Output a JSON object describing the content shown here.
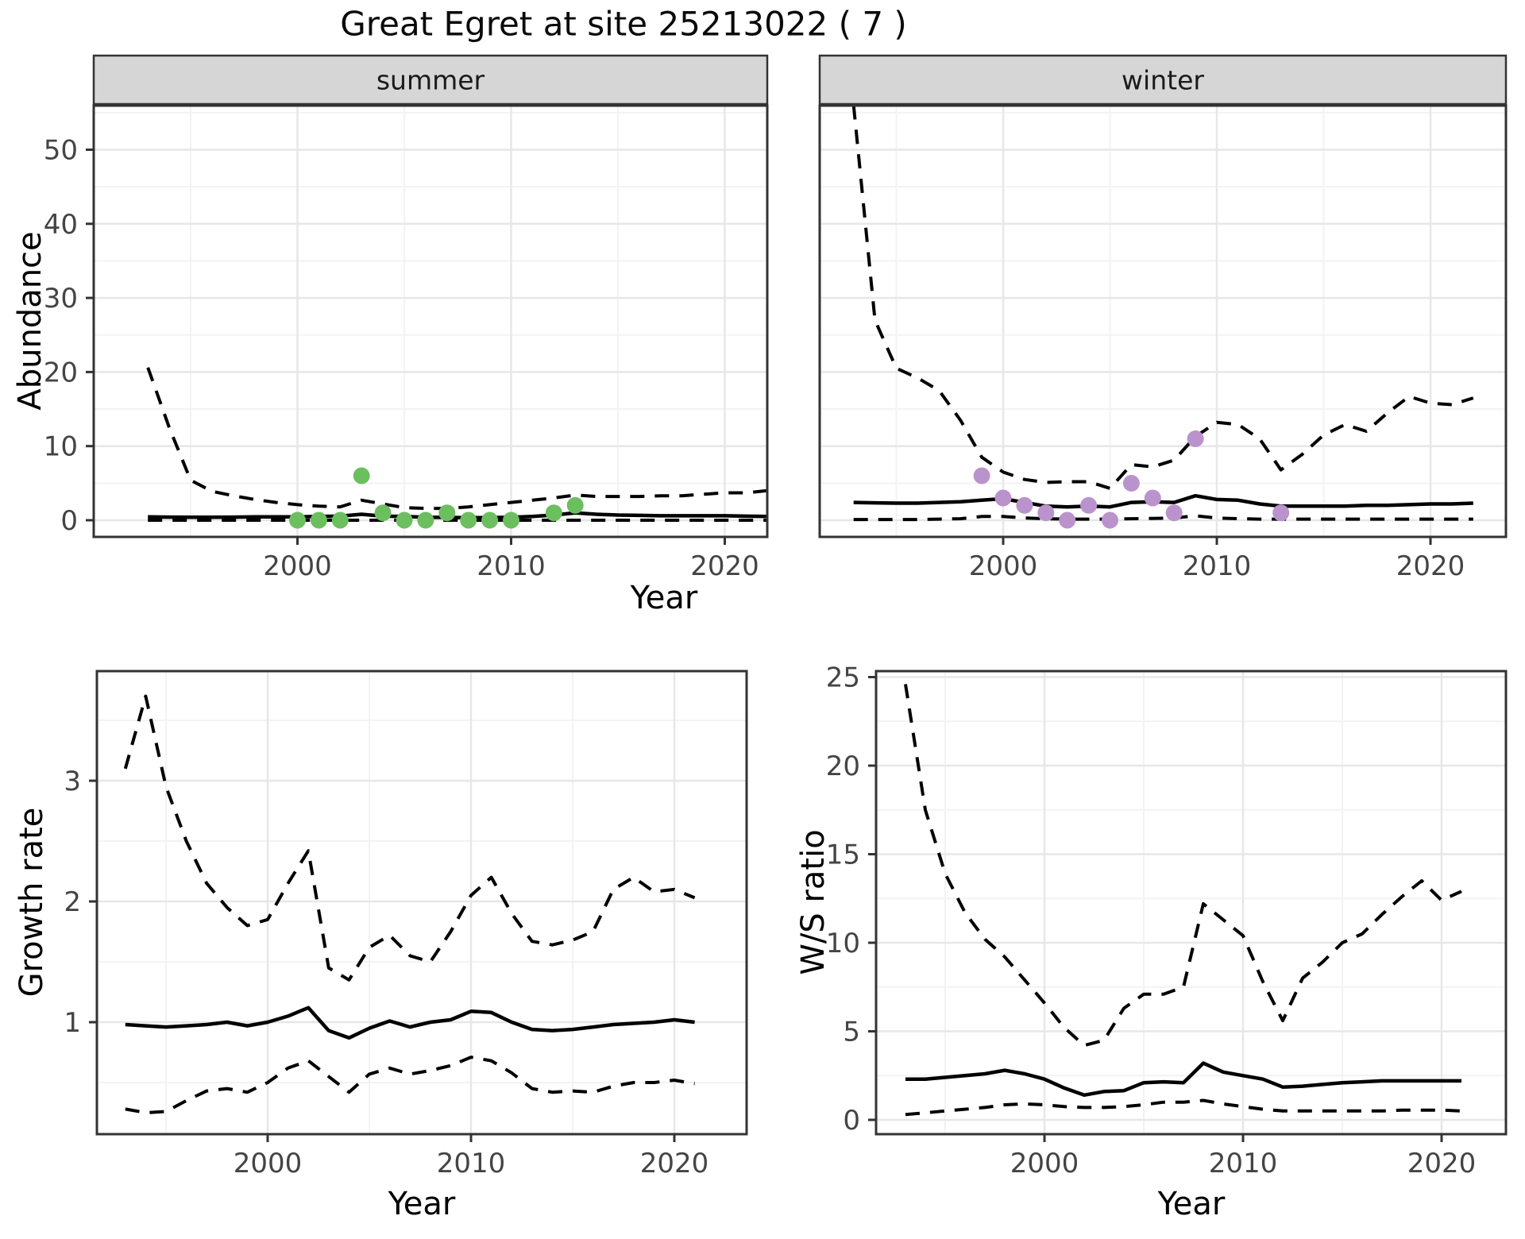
{
  "title": "Great Egret at site 25213022 ( 7 )",
  "facets": [
    "summer",
    "winter"
  ],
  "axis_labels": {
    "abundance": "Abundance",
    "growth": "Growth rate",
    "ws": "W/S ratio",
    "x_top": "Year",
    "x_bottom_left": "Year",
    "x_bottom_right": "Year"
  },
  "colors": {
    "summer_point": "#6cbf5f",
    "winter_point": "#bb93cc",
    "line": "#000000",
    "grid_major": "#e7e7e7",
    "grid_minor": "#f3f3f3",
    "strip_bg": "#d6d6d6",
    "panel_border": "#333333",
    "tick_text": "#444444",
    "panel_bg": "#ffffff"
  },
  "chart_data": [
    {
      "id": "abundance-summer",
      "type": "line",
      "facet": "summer",
      "ylabel": "Abundance",
      "xlabel": "Year",
      "x": [
        1993,
        1994,
        1995,
        1996,
        1997,
        1998,
        1999,
        2000,
        2001,
        2002,
        2003,
        2004,
        2005,
        2006,
        2007,
        2008,
        2009,
        2010,
        2011,
        2012,
        2013,
        2014,
        2015,
        2016,
        2017,
        2018,
        2019,
        2020,
        2021,
        2022
      ],
      "series": [
        {
          "name": "upper_ci",
          "style": "dashed",
          "values": [
            20.6,
            12.5,
            5.4,
            3.9,
            3.3,
            2.8,
            2.4,
            2.1,
            1.9,
            1.8,
            2.7,
            2.2,
            1.7,
            1.6,
            1.6,
            1.8,
            2.1,
            2.4,
            2.7,
            3.0,
            3.4,
            3.2,
            3.2,
            3.2,
            3.3,
            3.3,
            3.5,
            3.7,
            3.7,
            4.0
          ]
        },
        {
          "name": "median",
          "style": "solid",
          "values": [
            0.45,
            0.42,
            0.4,
            0.4,
            0.42,
            0.45,
            0.45,
            0.45,
            0.5,
            0.55,
            0.8,
            0.55,
            0.5,
            0.4,
            0.38,
            0.35,
            0.35,
            0.4,
            0.5,
            0.7,
            1.0,
            0.8,
            0.7,
            0.65,
            0.6,
            0.6,
            0.6,
            0.6,
            0.55,
            0.5
          ]
        },
        {
          "name": "lower_ci",
          "style": "dashed",
          "values": [
            0,
            0,
            0,
            0,
            0,
            0,
            0,
            0,
            0,
            0,
            0,
            0,
            0,
            0,
            0,
            0,
            0,
            0,
            0,
            0,
            0,
            0,
            0,
            0,
            0,
            0,
            0,
            0,
            0,
            0
          ]
        }
      ],
      "points": {
        "x": [
          2000,
          2001,
          2002,
          2003,
          2004,
          2005,
          2006,
          2007,
          2008,
          2009,
          2010,
          2012,
          2013
        ],
        "y": [
          0,
          0,
          0,
          6,
          1,
          0,
          0,
          1,
          0,
          0,
          0,
          1,
          2
        ],
        "color_key": "summer_point"
      },
      "yticks": [
        0,
        10,
        20,
        30,
        40,
        50
      ],
      "yminor": [
        5,
        15,
        25,
        35,
        45,
        55
      ],
      "xticks": [
        2000,
        2010,
        2020
      ],
      "xminor": [
        1995,
        2005,
        2015
      ],
      "ylim": [
        -2.3,
        56.2
      ]
    },
    {
      "id": "abundance-winter",
      "type": "line",
      "facet": "winter",
      "ylabel": "Abundance",
      "xlabel": "Year",
      "x": [
        1993,
        1994,
        1995,
        1996,
        1997,
        1998,
        1999,
        2000,
        2001,
        2002,
        2003,
        2004,
        2005,
        2006,
        2007,
        2008,
        2009,
        2010,
        2011,
        2012,
        2013,
        2014,
        2015,
        2016,
        2017,
        2018,
        2019,
        2020,
        2021,
        2022
      ],
      "series": [
        {
          "name": "upper_ci",
          "style": "dashed",
          "values": [
            56,
            27,
            20.5,
            19.2,
            17.5,
            13.5,
            8.5,
            6.5,
            5.5,
            5.1,
            5.2,
            5.2,
            4.3,
            7.5,
            7.2,
            8.1,
            11.3,
            13.2,
            12.9,
            11.0,
            6.8,
            8.9,
            11.5,
            12.9,
            12.0,
            14.5,
            16.7,
            15.8,
            15.6,
            16.5
          ]
        },
        {
          "name": "median",
          "style": "solid",
          "values": [
            2.4,
            2.35,
            2.3,
            2.3,
            2.4,
            2.5,
            2.7,
            2.9,
            2.4,
            1.9,
            1.8,
            1.9,
            1.8,
            2.4,
            2.5,
            2.4,
            3.3,
            2.8,
            2.7,
            2.2,
            1.9,
            1.9,
            1.9,
            1.9,
            2.0,
            2.0,
            2.1,
            2.2,
            2.2,
            2.3
          ]
        },
        {
          "name": "lower_ci",
          "style": "dashed",
          "values": [
            0.1,
            0.1,
            0.1,
            0.1,
            0.15,
            0.2,
            0.5,
            0.5,
            0.3,
            0.2,
            0.15,
            0.15,
            0.15,
            0.2,
            0.25,
            0.3,
            0.6,
            0.3,
            0.2,
            0.15,
            0.15,
            0.15,
            0.15,
            0.15,
            0.15,
            0.15,
            0.15,
            0.15,
            0.15,
            0.15
          ]
        }
      ],
      "points": {
        "x": [
          1999,
          2000,
          2001,
          2002,
          2003,
          2004,
          2005,
          2006,
          2007,
          2008,
          2009,
          2013
        ],
        "y": [
          6,
          3,
          2,
          1,
          0,
          2,
          0,
          5,
          3,
          1,
          11,
          1
        ],
        "color_key": "winter_point"
      },
      "yticks": [
        0,
        10,
        20,
        30,
        40,
        50
      ],
      "yminor": [
        5,
        15,
        25,
        35,
        45,
        55
      ],
      "xticks": [
        2000,
        2010,
        2020
      ],
      "xminor": [
        1995,
        2005,
        2015
      ],
      "ylim": [
        -2.3,
        56.2
      ]
    },
    {
      "id": "growth-rate",
      "type": "line",
      "ylabel": "Growth rate",
      "xlabel": "Year",
      "x": [
        1993,
        1994,
        1995,
        1996,
        1997,
        1998,
        1999,
        2000,
        2001,
        2002,
        2003,
        2004,
        2005,
        2006,
        2007,
        2008,
        2009,
        2010,
        2011,
        2012,
        2013,
        2014,
        2015,
        2016,
        2017,
        2018,
        2019,
        2020,
        2021
      ],
      "series": [
        {
          "name": "upper_ci",
          "style": "dashed",
          "values": [
            3.1,
            3.7,
            2.95,
            2.5,
            2.15,
            1.95,
            1.8,
            1.85,
            2.15,
            2.42,
            1.45,
            1.35,
            1.62,
            1.72,
            1.55,
            1.5,
            1.75,
            2.05,
            2.2,
            1.9,
            1.67,
            1.64,
            1.68,
            1.75,
            2.1,
            2.2,
            2.08,
            2.1,
            2.03
          ]
        },
        {
          "name": "median",
          "style": "solid",
          "values": [
            0.98,
            0.97,
            0.96,
            0.97,
            0.98,
            1.0,
            0.97,
            1.0,
            1.05,
            1.12,
            0.93,
            0.87,
            0.95,
            1.01,
            0.96,
            1.0,
            1.02,
            1.09,
            1.08,
            1.0,
            0.94,
            0.93,
            0.94,
            0.96,
            0.98,
            0.99,
            1.0,
            1.02,
            1.0
          ]
        },
        {
          "name": "lower_ci",
          "style": "dashed",
          "values": [
            0.28,
            0.25,
            0.26,
            0.35,
            0.43,
            0.45,
            0.42,
            0.5,
            0.62,
            0.68,
            0.55,
            0.42,
            0.57,
            0.62,
            0.57,
            0.6,
            0.64,
            0.71,
            0.68,
            0.58,
            0.45,
            0.42,
            0.43,
            0.42,
            0.47,
            0.5,
            0.5,
            0.52,
            0.49
          ]
        }
      ],
      "yticks": [
        1,
        2,
        3
      ],
      "yminor": [
        0.5,
        1.5,
        2.5,
        3.5
      ],
      "xticks": [
        2000,
        2010,
        2020
      ],
      "xminor": [
        1995,
        2005,
        2015
      ],
      "ylim": [
        0.07,
        3.9
      ]
    },
    {
      "id": "ws-ratio",
      "type": "line",
      "ylabel": "W/S ratio",
      "xlabel": "Year",
      "x": [
        1993,
        1994,
        1995,
        1996,
        1997,
        1998,
        1999,
        2000,
        2001,
        2002,
        2003,
        2004,
        2005,
        2006,
        2007,
        2008,
        2009,
        2010,
        2011,
        2012,
        2013,
        2014,
        2015,
        2016,
        2017,
        2018,
        2019,
        2020,
        2021
      ],
      "series": [
        {
          "name": "upper_ci",
          "style": "dashed",
          "values": [
            24.6,
            17.5,
            13.9,
            11.7,
            10.2,
            9.2,
            7.9,
            6.6,
            5.2,
            4.2,
            4.5,
            6.3,
            7.1,
            7.1,
            7.5,
            12.2,
            11.3,
            10.4,
            7.8,
            5.6,
            8.0,
            8.9,
            10.0,
            10.5,
            11.6,
            12.6,
            13.5,
            12.4,
            12.9
          ]
        },
        {
          "name": "median",
          "style": "solid",
          "values": [
            2.3,
            2.3,
            2.4,
            2.5,
            2.6,
            2.8,
            2.6,
            2.3,
            1.8,
            1.4,
            1.6,
            1.65,
            2.1,
            2.15,
            2.1,
            3.2,
            2.7,
            2.5,
            2.3,
            1.85,
            1.9,
            2.0,
            2.1,
            2.15,
            2.2,
            2.2,
            2.2,
            2.2,
            2.2
          ]
        },
        {
          "name": "lower_ci",
          "style": "dashed",
          "values": [
            0.3,
            0.4,
            0.5,
            0.6,
            0.7,
            0.85,
            0.9,
            0.85,
            0.75,
            0.7,
            0.7,
            0.75,
            0.85,
            1.0,
            1.0,
            1.1,
            0.9,
            0.75,
            0.6,
            0.5,
            0.5,
            0.5,
            0.5,
            0.5,
            0.5,
            0.55,
            0.55,
            0.55,
            0.5
          ]
        }
      ],
      "yticks": [
        0,
        5,
        10,
        15,
        20,
        25
      ],
      "yminor": [
        2.5,
        7.5,
        12.5,
        17.5,
        22.5
      ],
      "xticks": [
        2000,
        2010,
        2020
      ],
      "xminor": [
        1995,
        2005,
        2015
      ],
      "ylim": [
        -0.8,
        25.3
      ]
    }
  ]
}
